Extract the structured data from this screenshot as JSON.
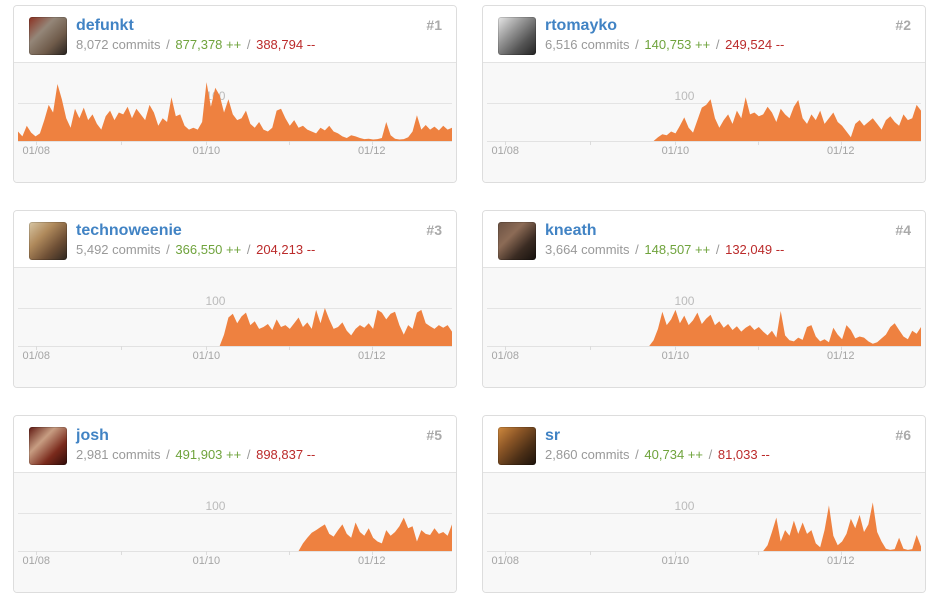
{
  "labels": {
    "sep": "/"
  },
  "colors": {
    "link_blue": "#4183c4",
    "additions_green": "#6fa33c",
    "deletions_red": "#bb2b2b",
    "sparkline_orange": "#ee8140",
    "muted_gray": "#999999",
    "rank_gray": "#aaaaaa",
    "chart_background": "#f8f8f8",
    "card_border": "#dddddd"
  },
  "axis": {
    "gridline_label": "100",
    "gridline_value": 100,
    "ticks": [
      {
        "label": "01/08",
        "f": 0.042
      },
      {
        "label": "",
        "f": 0.238
      },
      {
        "label": "01/10",
        "f": 0.434
      },
      {
        "label": "",
        "f": 0.625
      },
      {
        "label": "01/12",
        "f": 0.815
      }
    ]
  },
  "cards": [
    {
      "rank": "#1",
      "username": "defunkt",
      "commits": "8,072 commits",
      "additions": "877,378 ++",
      "deletions": "388,794 --",
      "avatar_colors": [
        "#8b2f20",
        "#948678",
        "#6e5a49",
        "#26211e"
      ],
      "chart": {
        "values": [
          25,
          12,
          40,
          22,
          12,
          20,
          55,
          95,
          75,
          150,
          110,
          60,
          35,
          85,
          60,
          88,
          55,
          70,
          45,
          30,
          65,
          80,
          55,
          75,
          70,
          90,
          60,
          85,
          70,
          55,
          95,
          75,
          40,
          60,
          50,
          115,
          65,
          70,
          40,
          30,
          35,
          30,
          50,
          155,
          90,
          140,
          120,
          75,
          110,
          70,
          55,
          60,
          80,
          45,
          35,
          50,
          30,
          25,
          35,
          80,
          85,
          60,
          40,
          55,
          35,
          40,
          30,
          25,
          20,
          35,
          28,
          40,
          25,
          20,
          12,
          8,
          15,
          12,
          8,
          5,
          6,
          4,
          5,
          8,
          50,
          15,
          6,
          4,
          5,
          10,
          25,
          68,
          30,
          42,
          30,
          38,
          28,
          40,
          30,
          35
        ]
      }
    },
    {
      "rank": "#2",
      "username": "rtomayko",
      "commits": "6,516 commits",
      "additions": "140,753 ++",
      "deletions": "249,524 --",
      "avatar_colors": [
        "#e8e8e8",
        "#9a9a9a",
        "#555555",
        "#222222"
      ],
      "chart": {
        "values": [
          0,
          0,
          0,
          0,
          0,
          0,
          0,
          0,
          0,
          0,
          0,
          0,
          0,
          0,
          0,
          0,
          0,
          0,
          0,
          0,
          0,
          0,
          0,
          0,
          0,
          0,
          0,
          0,
          0,
          0,
          0,
          0,
          0,
          0,
          0,
          0,
          0,
          0,
          0,
          10,
          18,
          15,
          25,
          20,
          40,
          62,
          35,
          22,
          55,
          88,
          95,
          110,
          60,
          35,
          55,
          70,
          45,
          80,
          60,
          115,
          70,
          75,
          65,
          70,
          90,
          75,
          50,
          85,
          70,
          60,
          90,
          108,
          60,
          45,
          70,
          55,
          80,
          45,
          60,
          75,
          50,
          40,
          25,
          10,
          45,
          55,
          40,
          50,
          60,
          45,
          30,
          55,
          65,
          50,
          40,
          70,
          55,
          60,
          95,
          80
        ]
      }
    },
    {
      "rank": "#3",
      "username": "technoweenie",
      "commits": "5,492 commits",
      "additions": "366,550 ++",
      "deletions": "204,213 --",
      "avatar_colors": [
        "#d8c7a5",
        "#b08a5c",
        "#6e4f35",
        "#2e2620"
      ],
      "chart": {
        "values": [
          0,
          0,
          0,
          0,
          0,
          0,
          0,
          0,
          0,
          0,
          0,
          0,
          0,
          0,
          0,
          0,
          0,
          0,
          0,
          0,
          0,
          0,
          0,
          0,
          0,
          0,
          0,
          0,
          0,
          0,
          0,
          0,
          0,
          0,
          0,
          0,
          0,
          0,
          0,
          0,
          0,
          0,
          0,
          0,
          0,
          0,
          0,
          30,
          75,
          85,
          60,
          78,
          88,
          55,
          65,
          45,
          50,
          58,
          42,
          70,
          50,
          55,
          45,
          60,
          75,
          50,
          62,
          45,
          95,
          60,
          100,
          70,
          45,
          50,
          62,
          40,
          28,
          45,
          55,
          48,
          60,
          45,
          95,
          88,
          70,
          85,
          90,
          55,
          30,
          55,
          45,
          88,
          95,
          60,
          52,
          45,
          55,
          48,
          55,
          38
        ]
      }
    },
    {
      "rank": "#4",
      "username": "kneath",
      "commits": "3,664 commits",
      "additions": "148,507 ++",
      "deletions": "132,049 --",
      "avatar_colors": [
        "#6b5243",
        "#8c6b56",
        "#3a2b22",
        "#15100d"
      ],
      "chart": {
        "values": [
          0,
          0,
          0,
          0,
          0,
          0,
          0,
          0,
          0,
          0,
          0,
          0,
          0,
          0,
          0,
          0,
          0,
          0,
          0,
          0,
          0,
          0,
          0,
          0,
          0,
          0,
          0,
          0,
          0,
          0,
          0,
          0,
          0,
          0,
          0,
          0,
          0,
          0,
          15,
          45,
          90,
          55,
          70,
          95,
          60,
          80,
          55,
          68,
          88,
          58,
          72,
          82,
          55,
          65,
          48,
          58,
          42,
          52,
          38,
          48,
          55,
          42,
          50,
          38,
          28,
          40,
          22,
          92,
          28,
          15,
          12,
          22,
          16,
          50,
          55,
          25,
          12,
          18,
          10,
          48,
          30,
          18,
          55,
          42,
          20,
          25,
          22,
          12,
          6,
          10,
          20,
          30,
          50,
          60,
          42,
          25,
          18,
          40,
          32,
          50
        ]
      }
    },
    {
      "rank": "#5",
      "username": "josh",
      "commits": "2,981 commits",
      "additions": "491,903 ++",
      "deletions": "898,837 --",
      "avatar_colors": [
        "#5e1710",
        "#c79d82",
        "#7a2a1c",
        "#2e0b08"
      ],
      "chart": {
        "values": [
          0,
          0,
          0,
          0,
          0,
          0,
          0,
          0,
          0,
          0,
          0,
          0,
          0,
          0,
          0,
          0,
          0,
          0,
          0,
          0,
          0,
          0,
          0,
          0,
          0,
          0,
          0,
          0,
          0,
          0,
          0,
          0,
          0,
          0,
          0,
          0,
          0,
          0,
          0,
          0,
          0,
          0,
          0,
          0,
          0,
          0,
          0,
          0,
          0,
          0,
          0,
          0,
          0,
          0,
          0,
          0,
          0,
          0,
          0,
          0,
          0,
          0,
          0,
          0,
          0,
          20,
          35,
          48,
          55,
          63,
          70,
          45,
          38,
          55,
          70,
          45,
          35,
          75,
          50,
          40,
          60,
          35,
          25,
          20,
          55,
          40,
          50,
          65,
          88,
          60,
          65,
          25,
          55,
          45,
          42,
          60,
          45,
          50,
          40,
          70
        ]
      }
    },
    {
      "rank": "#6",
      "username": "sr",
      "commits": "2,860 commits",
      "additions": "40,734 ++",
      "deletions": "81,033 --",
      "avatar_colors": [
        "#d08a3e",
        "#8a5526",
        "#4a2e16",
        "#1c120b"
      ],
      "chart": {
        "values": [
          0,
          0,
          0,
          0,
          0,
          0,
          0,
          0,
          0,
          0,
          0,
          0,
          0,
          0,
          0,
          0,
          0,
          0,
          0,
          0,
          0,
          0,
          0,
          0,
          0,
          0,
          0,
          0,
          0,
          0,
          0,
          0,
          0,
          0,
          0,
          0,
          0,
          0,
          0,
          0,
          0,
          0,
          0,
          0,
          0,
          0,
          0,
          0,
          0,
          0,
          0,
          0,
          0,
          0,
          0,
          0,
          0,
          0,
          0,
          0,
          0,
          0,
          0,
          0,
          15,
          50,
          88,
          25,
          55,
          40,
          80,
          45,
          75,
          45,
          55,
          20,
          10,
          55,
          120,
          40,
          15,
          25,
          45,
          85,
          60,
          95,
          50,
          70,
          128,
          50,
          25,
          6,
          3,
          5,
          35,
          6,
          3,
          5,
          42,
          12
        ]
      }
    }
  ]
}
